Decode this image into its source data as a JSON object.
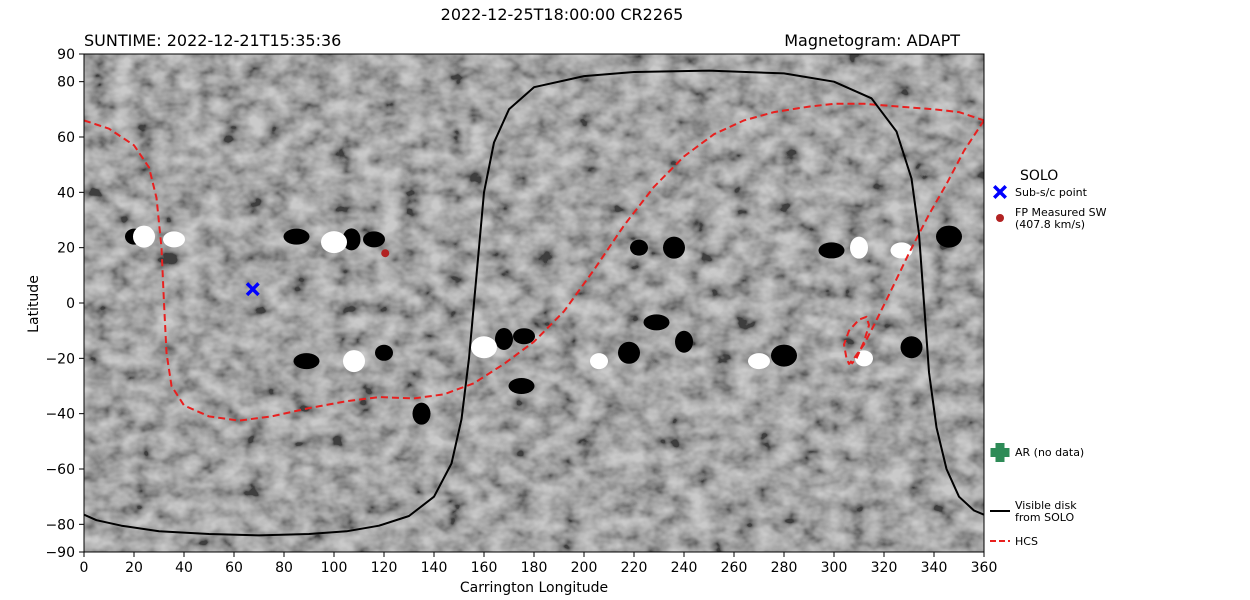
{
  "figure": {
    "title": "2022-12-25T18:00:00 CR2265",
    "suntime": "SUNTIME: 2022-12-21T15:35:36",
    "magnetogram": "Magnetogram: ADAPT"
  },
  "colors": {
    "hcs": "#e8201f",
    "visible_disk": "#000000",
    "subsc_point": "#0000ff",
    "fp_measured": "#b22222",
    "ar_marker": "#2e8b57"
  },
  "legend": {
    "spacecraft": "SOLO",
    "subsc_label": "Sub-s/c point",
    "fp_label_line1": "FP Measured SW",
    "fp_label_line2": "(407.8 km/s)",
    "ar_label": "AR (no data)",
    "disk_label_line1": "Visible disk",
    "disk_label_line2": "from SOLO",
    "hcs_label": "HCS"
  },
  "chart_data": {
    "type": "scatter",
    "background": "magnetogram-grayscale",
    "xlabel": "Carrington Longitude",
    "ylabel": "Latitude",
    "xlim": [
      0,
      360
    ],
    "ylim": [
      -90,
      90
    ],
    "xticks": [
      0,
      20,
      40,
      60,
      80,
      100,
      120,
      140,
      160,
      180,
      200,
      220,
      240,
      260,
      280,
      300,
      320,
      340,
      360
    ],
    "yticks": [
      -90,
      -80,
      -60,
      -40,
      -20,
      0,
      20,
      40,
      60,
      80,
      90
    ],
    "grid": false,
    "series": [
      {
        "name": "HCS",
        "style": "dashed-line",
        "segments": [
          [
            [
              0,
              66
            ],
            [
              10,
              63
            ],
            [
              20,
              57
            ],
            [
              26,
              49
            ],
            [
              29,
              38
            ],
            [
              31,
              20
            ],
            [
              32,
              0
            ],
            [
              33,
              -18
            ],
            [
              35,
              -30
            ],
            [
              40,
              -37
            ],
            [
              50,
              -41
            ],
            [
              62,
              -42.5
            ],
            [
              75,
              -41
            ],
            [
              90,
              -38
            ],
            [
              105,
              -35.5
            ],
            [
              118,
              -34
            ],
            [
              132,
              -34.5
            ],
            [
              144,
              -33
            ],
            [
              156,
              -29
            ],
            [
              168,
              -22
            ],
            [
              180,
              -14
            ],
            [
              192,
              -3
            ],
            [
              204,
              12
            ],
            [
              216,
              28
            ],
            [
              228,
              42
            ],
            [
              240,
              53
            ],
            [
              252,
              61
            ],
            [
              264,
              66
            ],
            [
              276,
              69
            ],
            [
              290,
              71
            ],
            [
              300,
              72
            ],
            [
              312,
              72
            ],
            [
              326,
              71
            ],
            [
              340,
              70
            ],
            [
              350,
              69
            ],
            [
              360,
              66
            ]
          ],
          [
            [
              360,
              66
            ],
            [
              352,
              55
            ],
            [
              345,
              43
            ],
            [
              338,
              32
            ],
            [
              330,
              18
            ],
            [
              322,
              3
            ],
            [
              316,
              -8
            ],
            [
              312,
              -15
            ],
            [
              308,
              -20
            ],
            [
              306,
              -22
            ],
            [
              305,
              -20
            ],
            [
              304,
              -15
            ],
            [
              306,
              -10
            ],
            [
              310,
              -6
            ],
            [
              313,
              -5
            ],
            [
              314,
              -8
            ],
            [
              312,
              -14
            ],
            [
              309,
              -20
            ],
            [
              307,
              -22
            ]
          ]
        ]
      },
      {
        "name": "Visible disk from SOLO",
        "style": "solid-line",
        "segments": [
          [
            [
              0,
              -76.5
            ],
            [
              5,
              -78.5
            ],
            [
              15,
              -80.5
            ],
            [
              30,
              -82.5
            ],
            [
              50,
              -83.5
            ],
            [
              70,
              -84
            ],
            [
              90,
              -83.5
            ],
            [
              105,
              -82.5
            ],
            [
              118,
              -80.5
            ],
            [
              130,
              -77
            ],
            [
              140,
              -70
            ],
            [
              147,
              -58
            ],
            [
              151,
              -42
            ],
            [
              154,
              -20
            ],
            [
              156,
              0
            ],
            [
              158,
              20
            ],
            [
              160,
              40
            ],
            [
              164,
              58
            ],
            [
              170,
              70
            ],
            [
              180,
              78
            ],
            [
              200,
              82
            ],
            [
              220,
              83.5
            ],
            [
              250,
              84
            ],
            [
              280,
              83
            ],
            [
              300,
              80
            ],
            [
              315,
              74
            ],
            [
              325,
              62
            ],
            [
              331,
              45
            ],
            [
              334,
              25
            ],
            [
              336,
              0
            ],
            [
              338,
              -25
            ],
            [
              341,
              -45
            ],
            [
              345,
              -60
            ],
            [
              350,
              -70
            ],
            [
              356,
              -75
            ],
            [
              360,
              -76.5
            ]
          ]
        ]
      }
    ],
    "points": [
      {
        "name": "Sub-s/c point",
        "lon": 67.5,
        "lat": 5,
        "marker": "X"
      },
      {
        "name": "FP Measured SW",
        "lon": 120.5,
        "lat": 18,
        "marker": "dot"
      }
    ]
  }
}
